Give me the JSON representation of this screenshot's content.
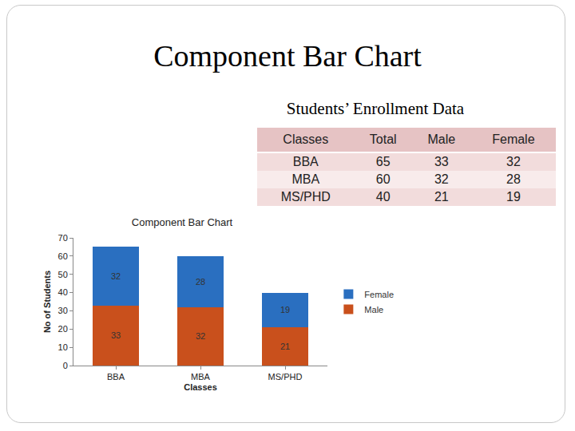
{
  "header": {
    "title": "Component Bar Chart",
    "subtitle": "Students’ Enrollment Data"
  },
  "table": {
    "columns": [
      "Classes",
      "Total",
      "Male",
      "Female"
    ],
    "rows": [
      [
        "BBA",
        65,
        33,
        32
      ],
      [
        "MBA",
        60,
        32,
        28
      ],
      [
        "MS/PHD",
        40,
        21,
        19
      ]
    ]
  },
  "chart_data": {
    "type": "bar",
    "title": "Component Bar Chart",
    "x_label": "Classes",
    "y_label": "No of Students",
    "categories": [
      "BBA",
      "MBA",
      "MS/PHD"
    ],
    "series": [
      {
        "name": "Male",
        "color": "#c9501c",
        "values": [
          33,
          32,
          21
        ]
      },
      {
        "name": "Female",
        "color": "#2a6fc0",
        "values": [
          32,
          28,
          19
        ]
      }
    ],
    "stacked": true,
    "data_labels": true,
    "legend": "right",
    "grid": false,
    "ylim": [
      0,
      70
    ],
    "yticks": [
      0,
      10,
      20,
      30,
      40,
      50,
      60,
      70
    ]
  }
}
